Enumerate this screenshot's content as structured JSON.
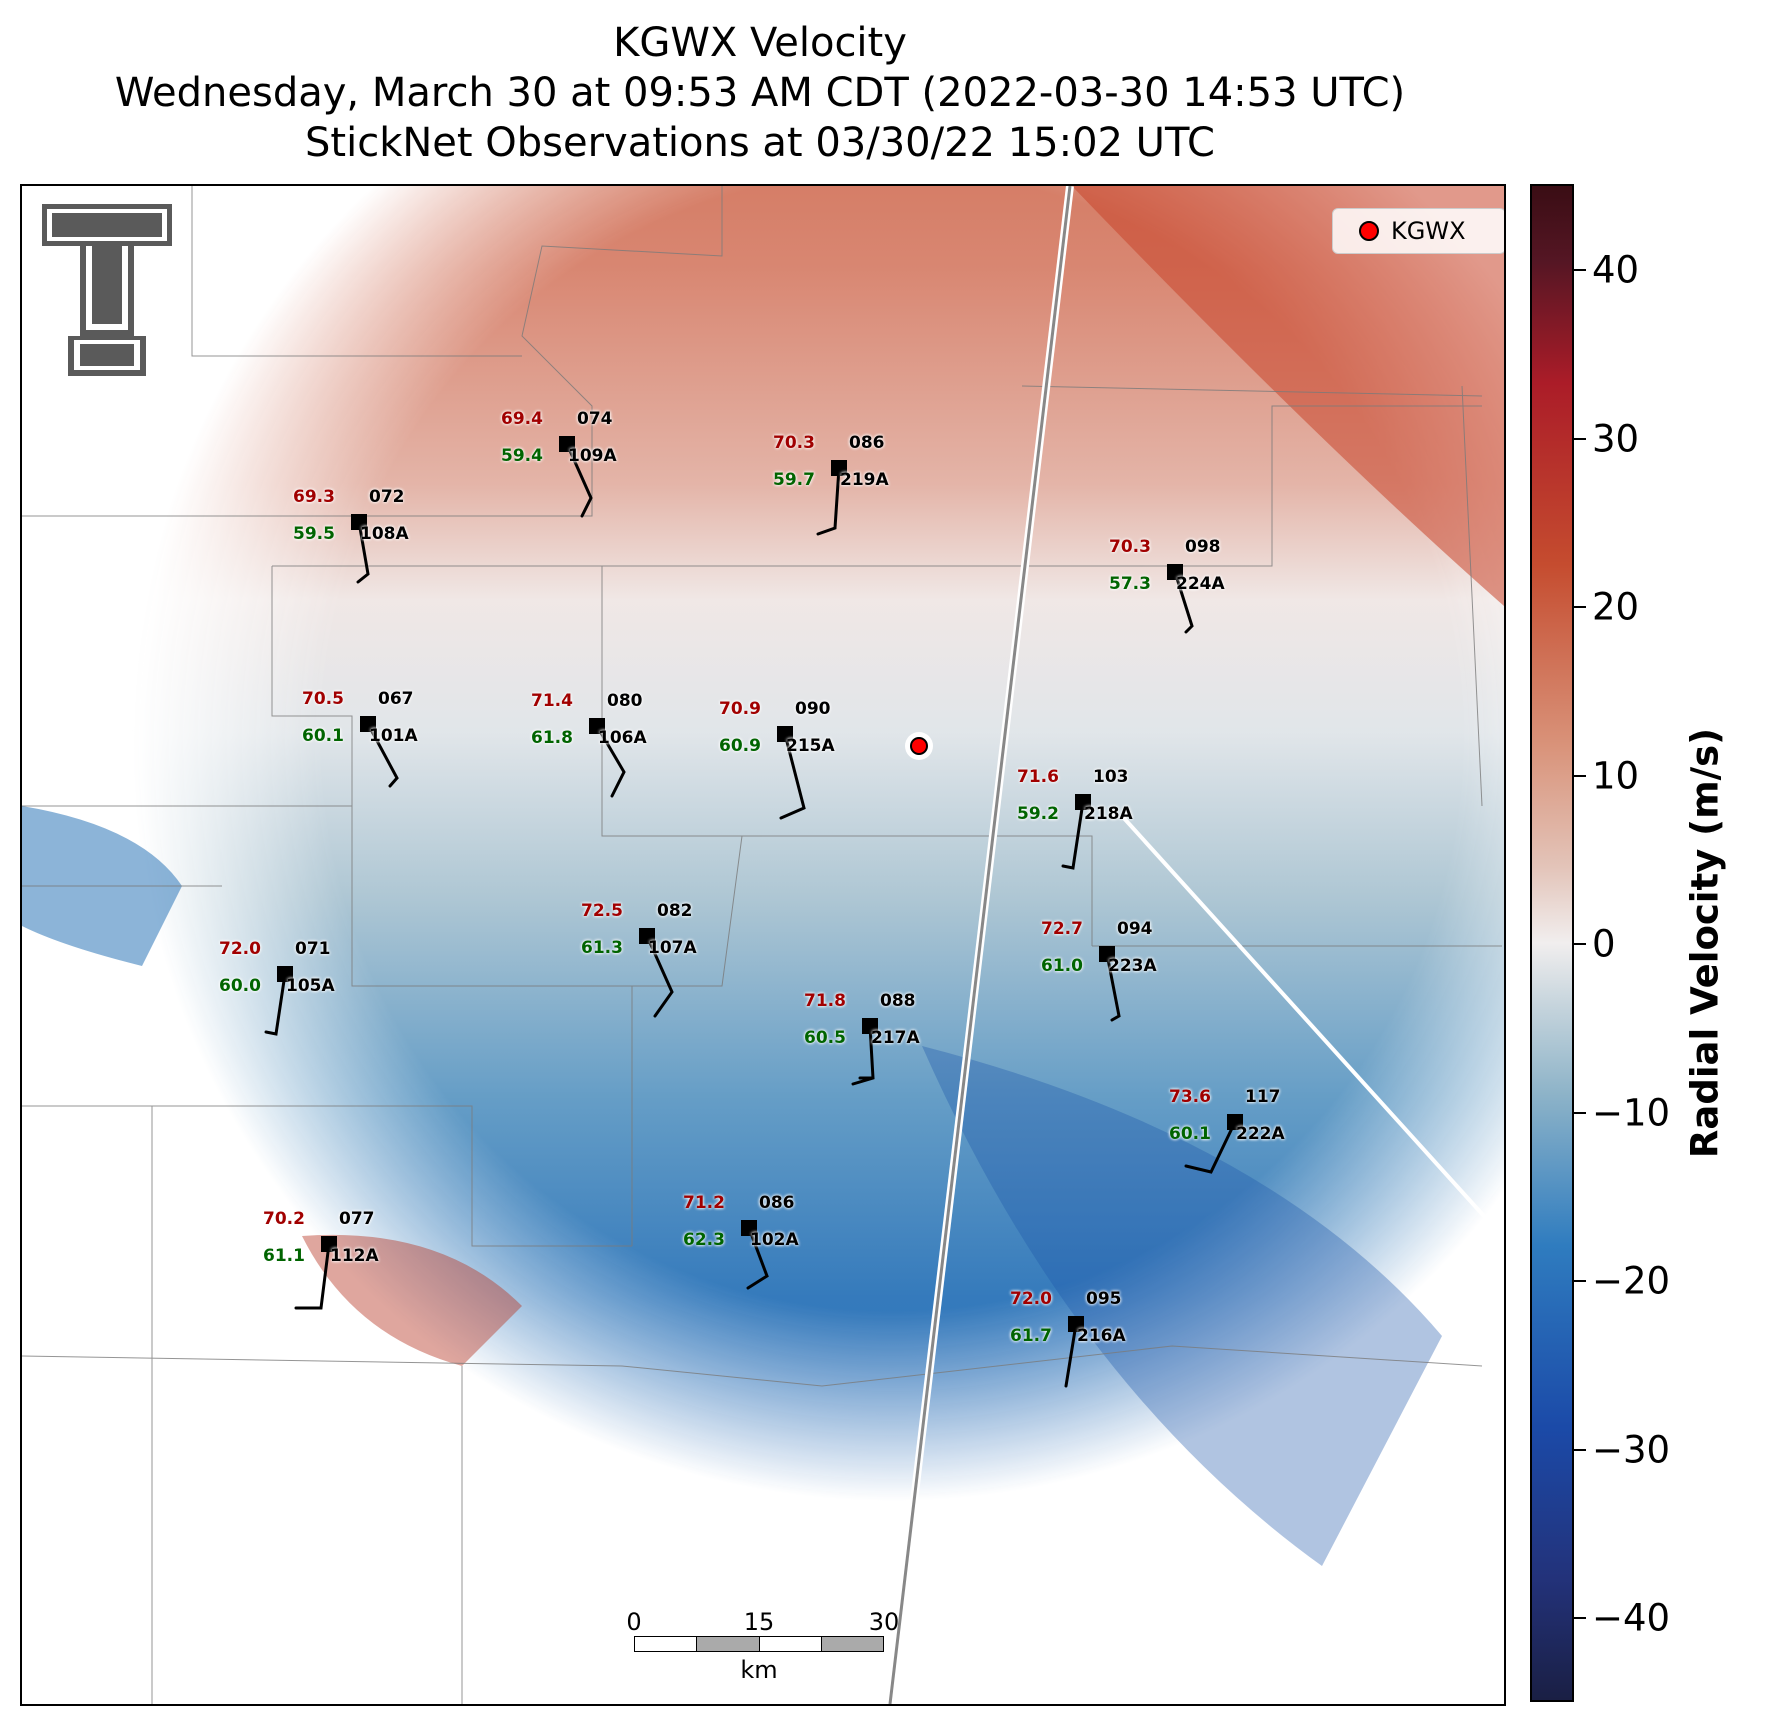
{
  "title": {
    "line1": "KGWX Velocity",
    "line2": "Wednesday, March 30 at 09:53 AM CDT (2022-03-30 14:53 UTC)",
    "line3": "StickNet Observations at 03/30/22 15:02 UTC"
  },
  "legend": {
    "label": "KGWX",
    "marker_color": "#ff0000"
  },
  "logo": {
    "name": "texas-tech-double-t-logo",
    "text": "TT"
  },
  "scalebar": {
    "labels": [
      "0",
      "15",
      "30"
    ],
    "unit": "km"
  },
  "colorbar": {
    "title": "Radial Velocity (m/s)",
    "ticks": [
      "40",
      "30",
      "20",
      "10",
      "0",
      "−10",
      "−20",
      "−30",
      "−40"
    ],
    "range": [
      -45,
      45
    ],
    "colors": {
      "negative": "#1b4aa8",
      "zero": "#f1eeee",
      "positive": "#c54c2f"
    }
  },
  "stations": [
    {
      "id": "109A",
      "temp": "69.4",
      "dew": "59.4",
      "dir": "074"
    },
    {
      "id": "219A",
      "temp": "70.3",
      "dew": "59.7",
      "dir": "086"
    },
    {
      "id": "108A",
      "temp": "69.3",
      "dew": "59.5",
      "dir": "072"
    },
    {
      "id": "224A",
      "temp": "70.3",
      "dew": "57.3",
      "dir": "098"
    },
    {
      "id": "101A",
      "temp": "70.5",
      "dew": "60.1",
      "dir": "067"
    },
    {
      "id": "106A",
      "temp": "71.4",
      "dew": "61.8",
      "dir": "080"
    },
    {
      "id": "215A",
      "temp": "70.9",
      "dew": "60.9",
      "dir": "090"
    },
    {
      "id": "218A",
      "temp": "71.6",
      "dew": "59.2",
      "dir": "103"
    },
    {
      "id": "107A",
      "temp": "72.5",
      "dew": "61.3",
      "dir": "082"
    },
    {
      "id": "223A",
      "temp": "72.7",
      "dew": "61.0",
      "dir": "094"
    },
    {
      "id": "105A",
      "temp": "72.0",
      "dew": "60.0",
      "dir": "071"
    },
    {
      "id": "217A",
      "temp": "71.8",
      "dew": "60.5",
      "dir": "088"
    },
    {
      "id": "222A",
      "temp": "73.6",
      "dew": "60.1",
      "dir": "117"
    },
    {
      "id": "102A",
      "temp": "71.2",
      "dew": "62.3",
      "dir": "086"
    },
    {
      "id": "112A",
      "temp": "70.2",
      "dew": "61.1",
      "dir": "077"
    },
    {
      "id": "216A",
      "temp": "72.0",
      "dew": "61.7",
      "dir": "095"
    }
  ]
}
